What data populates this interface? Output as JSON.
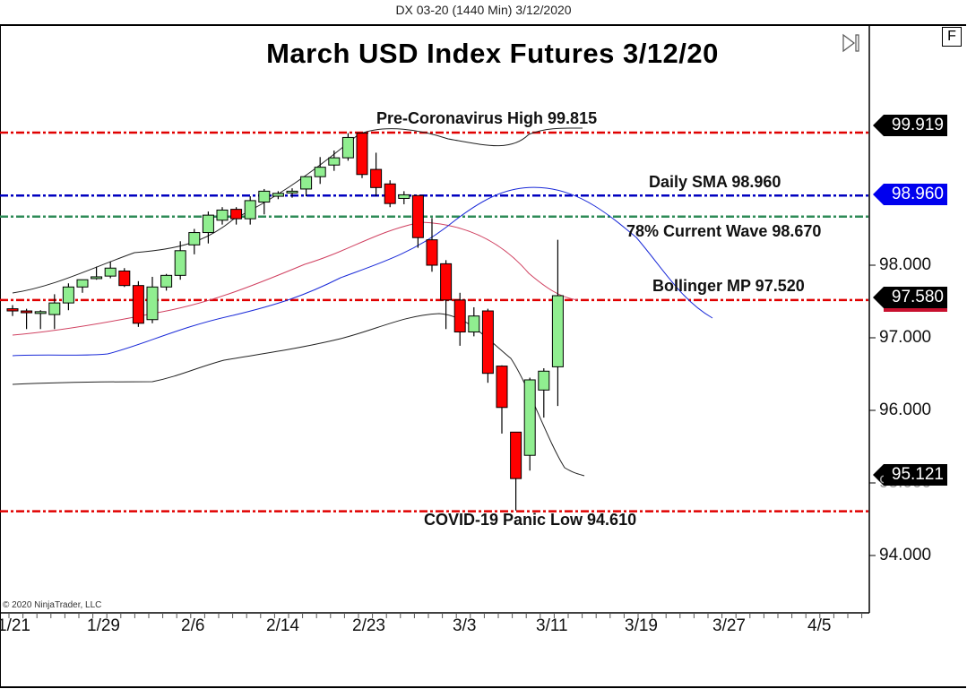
{
  "header": {
    "instrument_title": "DX 03-20 (1440 Min)  3/12/2020"
  },
  "chart_title": "March USD Index Futures 3/12/20",
  "copyright": "© 2020 NinjaTrader, LLC",
  "buttons": {
    "f_label": "F"
  },
  "annotations": {
    "pre_covid_high": "Pre-Coronavirus High 99.815",
    "daily_sma": "Daily SMA 98.960",
    "wave_78": "78% Current Wave 98.670",
    "bollinger_mp": "Bollinger MP 97.520",
    "covid_low": "COVID-19 Panic Low 94.610"
  },
  "price_tags": {
    "high": "99.919",
    "sma": "98.960",
    "current": "97.580",
    "lower_band": "95.121"
  },
  "colors": {
    "up": "#90ee90",
    "down": "#ff0000",
    "red_line": "#e00000",
    "blue_line": "#0000c0",
    "green_line": "#2e8b57",
    "sma_tag": "#0000ee"
  },
  "chart_data": {
    "type": "candlestick",
    "title": "March USD Index Futures 3/12/20",
    "subtitle": "DX 03-20 (1440 Min)  3/12/2020",
    "xlabel": "",
    "ylabel": "",
    "x_ticks": [
      "1/21",
      "1/29",
      "2/6",
      "2/14",
      "2/23",
      "3/3",
      "3/11",
      "3/19",
      "3/27",
      "4/5"
    ],
    "y_ticks": [
      "94.000",
      "95.000",
      "96.000",
      "97.000",
      "98.000"
    ],
    "ylim": [
      93.4,
      100.6
    ],
    "grid": false,
    "horizontal_lines": [
      {
        "label": "Pre-Coronavirus High 99.815",
        "value": 99.815,
        "color": "#e00000"
      },
      {
        "label": "Daily SMA 98.960",
        "value": 98.96,
        "color": "#0000c0"
      },
      {
        "label": "78% Current Wave 98.670",
        "value": 98.67,
        "color": "#2e8b57"
      },
      {
        "label": "Bollinger MP 97.520",
        "value": 97.52,
        "color": "#e00000"
      },
      {
        "label": "COVID-19 Panic Low 94.610",
        "value": 94.61,
        "color": "#e00000"
      }
    ],
    "candles": [
      {
        "o": 97.4,
        "h": 97.45,
        "l": 97.3,
        "c": 97.37
      },
      {
        "o": 97.37,
        "h": 97.4,
        "l": 97.12,
        "c": 97.35
      },
      {
        "o": 97.35,
        "h": 97.38,
        "l": 97.12,
        "c": 97.36
      },
      {
        "o": 97.32,
        "h": 97.6,
        "l": 97.12,
        "c": 97.48
      },
      {
        "o": 97.48,
        "h": 97.75,
        "l": 97.38,
        "c": 97.7
      },
      {
        "o": 97.7,
        "h": 97.8,
        "l": 97.62,
        "c": 97.8
      },
      {
        "o": 97.82,
        "h": 97.98,
        "l": 97.8,
        "c": 97.84
      },
      {
        "o": 97.85,
        "h": 98.05,
        "l": 97.82,
        "c": 97.96
      },
      {
        "o": 97.92,
        "h": 97.96,
        "l": 97.7,
        "c": 97.72
      },
      {
        "o": 97.72,
        "h": 97.78,
        "l": 97.15,
        "c": 97.2
      },
      {
        "o": 97.25,
        "h": 97.84,
        "l": 97.2,
        "c": 97.7
      },
      {
        "o": 97.7,
        "h": 97.88,
        "l": 97.65,
        "c": 97.86
      },
      {
        "o": 97.86,
        "h": 98.33,
        "l": 97.8,
        "c": 98.2
      },
      {
        "o": 98.28,
        "h": 98.5,
        "l": 98.15,
        "c": 98.45
      },
      {
        "o": 98.45,
        "h": 98.74,
        "l": 98.3,
        "c": 98.69
      },
      {
        "o": 98.62,
        "h": 98.8,
        "l": 98.56,
        "c": 98.76
      },
      {
        "o": 98.77,
        "h": 98.8,
        "l": 98.56,
        "c": 98.64
      },
      {
        "o": 98.64,
        "h": 98.95,
        "l": 98.56,
        "c": 98.89
      },
      {
        "o": 98.87,
        "h": 99.05,
        "l": 98.7,
        "c": 99.02
      },
      {
        "o": 98.95,
        "h": 99.02,
        "l": 98.91,
        "c": 98.99
      },
      {
        "o": 99.0,
        "h": 99.06,
        "l": 98.93,
        "c": 99.02
      },
      {
        "o": 99.05,
        "h": 99.22,
        "l": 98.95,
        "c": 99.22
      },
      {
        "o": 99.22,
        "h": 99.49,
        "l": 99.12,
        "c": 99.35
      },
      {
        "o": 99.38,
        "h": 99.58,
        "l": 99.3,
        "c": 99.48
      },
      {
        "o": 99.48,
        "h": 99.82,
        "l": 99.44,
        "c": 99.76
      },
      {
        "o": 99.82,
        "h": 99.82,
        "l": 99.2,
        "c": 99.25
      },
      {
        "o": 99.32,
        "h": 99.55,
        "l": 98.95,
        "c": 99.07
      },
      {
        "o": 99.12,
        "h": 99.17,
        "l": 98.8,
        "c": 98.85
      },
      {
        "o": 98.92,
        "h": 99.02,
        "l": 98.84,
        "c": 98.97
      },
      {
        "o": 98.96,
        "h": 98.96,
        "l": 98.24,
        "c": 98.38
      },
      {
        "o": 98.35,
        "h": 98.65,
        "l": 97.91,
        "c": 98.0
      },
      {
        "o": 98.02,
        "h": 98.07,
        "l": 97.12,
        "c": 97.52
      },
      {
        "o": 97.52,
        "h": 97.62,
        "l": 96.89,
        "c": 97.08
      },
      {
        "o": 97.08,
        "h": 97.42,
        "l": 97.02,
        "c": 97.3
      },
      {
        "o": 97.37,
        "h": 97.4,
        "l": 96.38,
        "c": 96.51
      },
      {
        "o": 96.61,
        "h": 96.62,
        "l": 95.68,
        "c": 96.04
      },
      {
        "o": 95.7,
        "h": 95.7,
        "l": 94.62,
        "c": 95.06
      },
      {
        "o": 95.38,
        "h": 96.45,
        "l": 95.17,
        "c": 96.42
      },
      {
        "o": 96.28,
        "h": 96.58,
        "l": 95.9,
        "c": 96.54
      },
      {
        "o": 96.6,
        "h": 98.35,
        "l": 96.06,
        "c": 97.58
      }
    ]
  }
}
